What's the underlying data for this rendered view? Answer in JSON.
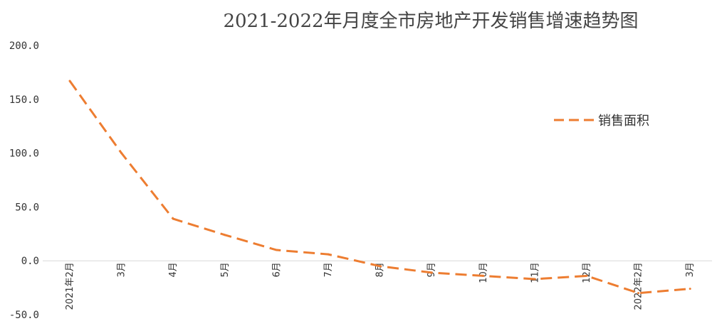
{
  "chart_data": {
    "type": "line",
    "title": "2021-2022年月度全市房地产开发销售增速趋势图",
    "xlabel": "",
    "ylabel": "",
    "ylim": [
      -50,
      200
    ],
    "y_ticks": [
      "200.0",
      "150.0",
      "100.0",
      "50.0",
      "0.0",
      "-50.0"
    ],
    "categories": [
      "2021年2月",
      "3月",
      "4月",
      "5月",
      "6月",
      "7月",
      "8月",
      "9月",
      "10月",
      "11月",
      "12月",
      "2022年2月",
      "3月"
    ],
    "series": [
      {
        "name": "销售面积",
        "color": "#ED7D31",
        "values": [
          167,
          100,
          39,
          24,
          10,
          6,
          -5,
          -11,
          -14,
          -17,
          -14,
          -30,
          -26
        ]
      }
    ],
    "grid": false,
    "legend_position": "right"
  }
}
